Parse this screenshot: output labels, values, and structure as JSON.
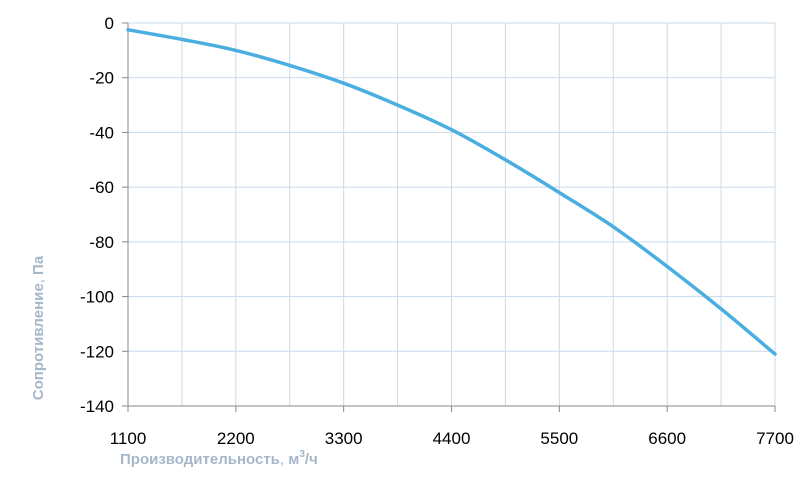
{
  "chart_data": {
    "type": "line",
    "xlabel": "Производительность, м³/ч",
    "ylabel": "Сопротивление, Па",
    "xlabel_parts": {
      "main": "Производительность",
      "comma": ",",
      "unit": "м",
      "sup": "3",
      "suffix": "/ч"
    },
    "ylabel_parts": {
      "main": "Сопротивление",
      "comma": ",",
      "unit": "Па"
    },
    "xlim": [
      1100,
      7700
    ],
    "ylim": [
      -140,
      0
    ],
    "x_ticks": [
      1100,
      2200,
      3300,
      4400,
      5500,
      6600,
      7700
    ],
    "y_ticks": [
      0,
      -20,
      -40,
      -60,
      -80,
      -100,
      -120,
      -140
    ],
    "x_minor_gridlines": [
      1650,
      2750,
      3850,
      4950,
      6050,
      7150
    ],
    "grid": true,
    "legend": "none",
    "colors": {
      "line": "#4aaee0",
      "grid": "#c9daea",
      "axis": "#888888"
    },
    "series": [
      {
        "x": [
          1100,
          1650,
          2200,
          2750,
          3300,
          3850,
          4400,
          4950,
          5500,
          6050,
          6600,
          7150,
          7700
        ],
        "values": [
          -2.5,
          -6,
          -10,
          -15.5,
          -22,
          -30,
          -39,
          -50,
          -62,
          -74.5,
          -89,
          -104.5,
          -121
        ]
      }
    ]
  }
}
